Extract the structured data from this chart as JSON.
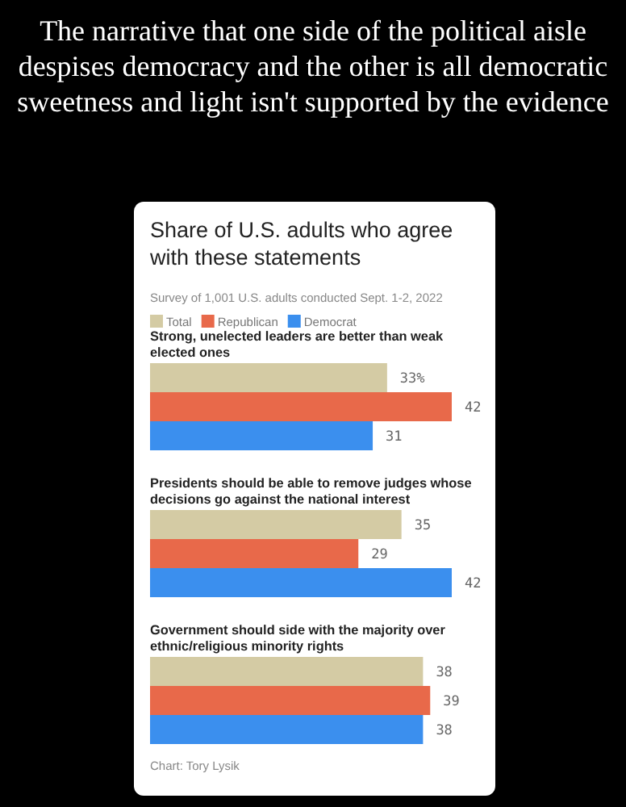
{
  "chart_data": {
    "type": "bar",
    "orientation": "horizontal",
    "title": "The narrative that one side of the political aisle despises democracy and the other is all democratic sweetness and light isn't supported by the evidence",
    "subtitle": "Share of U.S. adults who agree with these statements",
    "categories": [
      "Strong, unelected leaders are better than weak elected ones",
      "Presidents should be able to remove judges whose decisions go against the national interest",
      "Government should side with the majority over ethnic/religious minority rights"
    ],
    "series": [
      {
        "name": "Total",
        "color": "#d4cba4",
        "values": [
          33,
          35,
          38
        ],
        "value_labels": [
          "33%",
          "35",
          "38"
        ]
      },
      {
        "name": "Republican",
        "color": "#e8694a",
        "values": [
          42,
          29,
          39
        ]
      },
      {
        "name": "Democrat",
        "color": "#3b8fee",
        "values": [
          31,
          42,
          38
        ]
      }
    ],
    "data_labels": true,
    "legend": "top left",
    "annotations": [
      "Survey of 1,001 U.S. adults conducted Sept. 1-2, 2022",
      "Chart: Tory Lysik"
    ]
  }
}
